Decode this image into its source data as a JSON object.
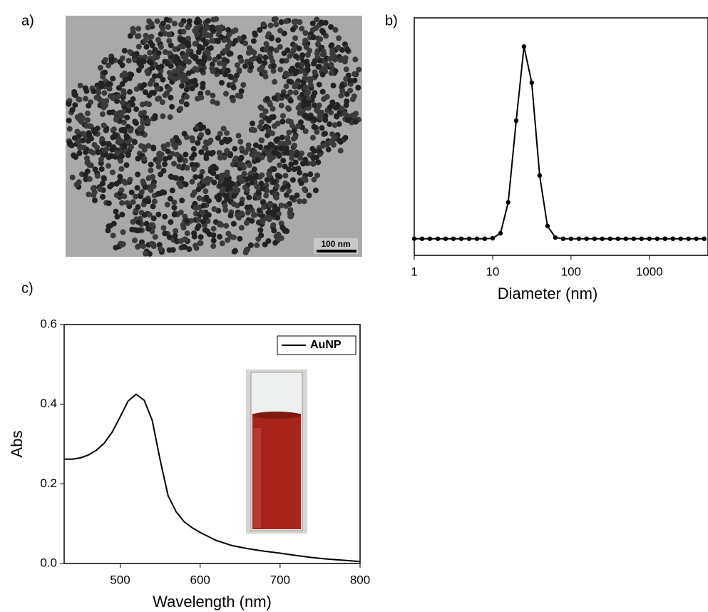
{
  "panel_labels": [
    "a)",
    "b)",
    "c)"
  ],
  "tem_image": {
    "scale_bar": "100 nm"
  },
  "chart_data": [
    {
      "type": "line",
      "markers": true,
      "xlabel": "Diameter (nm)",
      "xscale": "log",
      "xlim": [
        1,
        5600
      ],
      "xticks": [
        1,
        10,
        100,
        1000
      ],
      "ylim": [
        0,
        1
      ],
      "x": [
        1,
        1.26,
        1.58,
        2,
        2.51,
        3.16,
        3.98,
        5.01,
        6.31,
        7.94,
        10,
        12.6,
        15.8,
        20,
        25.1,
        31.6,
        39.8,
        50.1,
        63.1,
        79.4,
        100,
        126,
        158,
        200,
        251,
        316,
        398,
        501,
        631,
        794,
        1000,
        1259,
        1585,
        1995,
        2512,
        3162,
        3981,
        5012
      ],
      "series": [
        {
          "color": "#000000",
          "values": [
            0.07,
            0.07,
            0.07,
            0.07,
            0.07,
            0.07,
            0.07,
            0.07,
            0.07,
            0.07,
            0.072,
            0.093,
            0.223,
            0.567,
            0.879,
            0.727,
            0.336,
            0.124,
            0.075,
            0.07,
            0.07,
            0.07,
            0.07,
            0.07,
            0.07,
            0.07,
            0.07,
            0.07,
            0.07,
            0.07,
            0.07,
            0.07,
            0.07,
            0.07,
            0.07,
            0.07,
            0.07,
            0.07
          ]
        }
      ]
    },
    {
      "type": "line",
      "markers": false,
      "xlabel": "Wavelength (nm)",
      "ylabel": "Abs",
      "xlim": [
        430,
        800
      ],
      "xticks": [
        500,
        600,
        700,
        800
      ],
      "ylim": [
        0,
        0.6
      ],
      "yticks": [
        {
          "value": 0,
          "label": "0.0"
        },
        0.2,
        0.4,
        0.6
      ],
      "legend": "upper right",
      "x": [
        430,
        440,
        450,
        460,
        470,
        480,
        490,
        500,
        510,
        520,
        530,
        540,
        550,
        560,
        570,
        580,
        590,
        600,
        620,
        640,
        660,
        680,
        700,
        720,
        740,
        760,
        780,
        800
      ],
      "series": [
        {
          "name": "AuNP",
          "color": "#000000",
          "values": [
            0.262,
            0.262,
            0.265,
            0.272,
            0.284,
            0.302,
            0.33,
            0.368,
            0.408,
            0.425,
            0.41,
            0.36,
            0.26,
            0.17,
            0.13,
            0.105,
            0.09,
            0.078,
            0.058,
            0.045,
            0.037,
            0.031,
            0.026,
            0.02,
            0.015,
            0.011,
            0.008,
            0.005
          ]
        }
      ]
    }
  ]
}
